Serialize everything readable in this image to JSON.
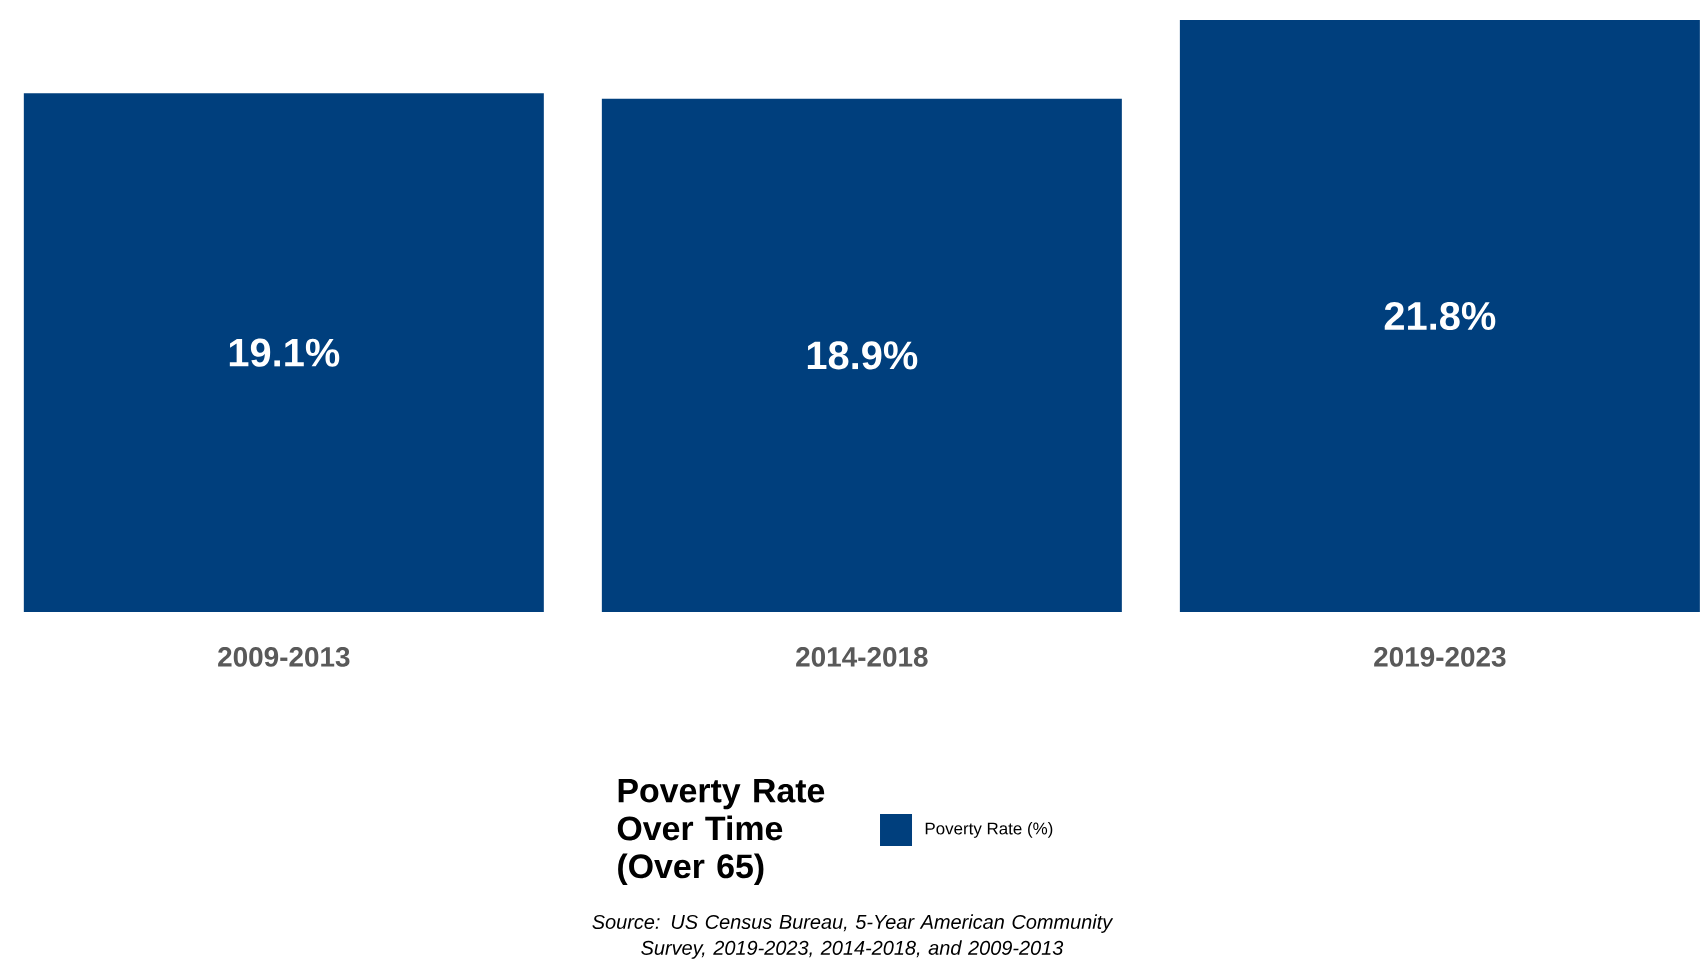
{
  "chart_data": {
    "type": "bar",
    "categories": [
      "2009-2013",
      "2014-2018",
      "2019-2023"
    ],
    "series": [
      {
        "name": "Poverty Rate (%)",
        "color": "#003f7d",
        "values": [
          19.1,
          18.9,
          21.8
        ],
        "value_labels": [
          "19.1%",
          "18.9%",
          "21.8%"
        ]
      }
    ],
    "legend_title": "Poverty Rate Over Time (Over 65)",
    "legend": "bottom",
    "annotations": [
      "Source: US Census Bureau, 5-Year American Community Survey, 2019-2023, 2014-2018, and 2009-2013"
    ]
  }
}
